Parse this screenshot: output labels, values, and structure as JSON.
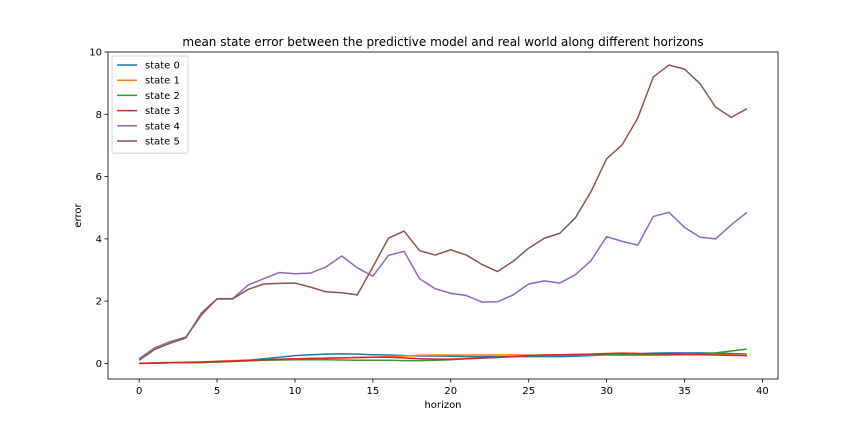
{
  "chart_data": {
    "type": "line",
    "title": "mean state error between the predictive model and real world along different horizons",
    "xlabel": "horizon",
    "ylabel": "error",
    "xlim": [
      -2,
      41
    ],
    "ylim": [
      -0.5,
      10
    ],
    "xticks": [
      0,
      5,
      10,
      15,
      20,
      25,
      30,
      35,
      40
    ],
    "yticks": [
      0,
      2,
      4,
      6,
      8,
      10
    ],
    "grid": false,
    "legend_position": "top-left",
    "x": [
      0,
      1,
      2,
      3,
      4,
      5,
      6,
      7,
      8,
      9,
      10,
      11,
      12,
      13,
      14,
      15,
      16,
      17,
      18,
      19,
      20,
      21,
      22,
      23,
      24,
      25,
      26,
      27,
      28,
      29,
      30,
      31,
      32,
      33,
      34,
      35,
      36,
      37,
      38,
      39
    ],
    "series": [
      {
        "name": "state 0",
        "color": "#1f77b4",
        "values": [
          0.0,
          0.01,
          0.02,
          0.02,
          0.03,
          0.05,
          0.07,
          0.1,
          0.15,
          0.2,
          0.25,
          0.28,
          0.3,
          0.31,
          0.3,
          0.28,
          0.27,
          0.25,
          0.24,
          0.24,
          0.23,
          0.22,
          0.22,
          0.22,
          0.22,
          0.22,
          0.22,
          0.22,
          0.23,
          0.25,
          0.28,
          0.3,
          0.31,
          0.33,
          0.34,
          0.34,
          0.34,
          0.33,
          0.32,
          0.3
        ]
      },
      {
        "name": "state 1",
        "color": "#ff7f0e",
        "values": [
          0.0,
          0.02,
          0.03,
          0.04,
          0.05,
          0.07,
          0.09,
          0.1,
          0.12,
          0.14,
          0.15,
          0.16,
          0.17,
          0.18,
          0.19,
          0.2,
          0.22,
          0.24,
          0.26,
          0.27,
          0.27,
          0.27,
          0.27,
          0.27,
          0.27,
          0.27,
          0.27,
          0.27,
          0.27,
          0.27,
          0.27,
          0.27,
          0.27,
          0.27,
          0.28,
          0.28,
          0.28,
          0.28,
          0.28,
          0.27
        ]
      },
      {
        "name": "state 2",
        "color": "#2ca02c",
        "values": [
          0.0,
          0.01,
          0.02,
          0.02,
          0.03,
          0.04,
          0.06,
          0.08,
          0.1,
          0.11,
          0.12,
          0.12,
          0.12,
          0.11,
          0.1,
          0.1,
          0.1,
          0.09,
          0.09,
          0.1,
          0.12,
          0.15,
          0.18,
          0.2,
          0.22,
          0.24,
          0.26,
          0.27,
          0.27,
          0.28,
          0.28,
          0.27,
          0.27,
          0.27,
          0.27,
          0.28,
          0.3,
          0.34,
          0.4,
          0.46
        ]
      },
      {
        "name": "state 3",
        "color": "#d62728",
        "values": [
          0.0,
          0.01,
          0.02,
          0.03,
          0.04,
          0.06,
          0.08,
          0.1,
          0.12,
          0.13,
          0.15,
          0.16,
          0.17,
          0.18,
          0.19,
          0.2,
          0.2,
          0.18,
          0.15,
          0.14,
          0.14,
          0.15,
          0.17,
          0.19,
          0.22,
          0.25,
          0.27,
          0.28,
          0.29,
          0.3,
          0.32,
          0.33,
          0.32,
          0.31,
          0.3,
          0.29,
          0.28,
          0.27,
          0.26,
          0.25
        ]
      },
      {
        "name": "state 4",
        "color": "#9467bd",
        "values": [
          0.15,
          0.5,
          0.7,
          0.85,
          1.55,
          2.08,
          2.08,
          2.52,
          2.72,
          2.92,
          2.88,
          2.9,
          3.1,
          3.45,
          3.07,
          2.8,
          3.47,
          3.6,
          2.72,
          2.4,
          2.25,
          2.18,
          1.97,
          1.98,
          2.2,
          2.55,
          2.65,
          2.58,
          2.85,
          3.3,
          4.07,
          3.92,
          3.8,
          4.72,
          4.85,
          4.37,
          4.05,
          4.0,
          4.45,
          4.85
        ]
      },
      {
        "name": "state 5",
        "color": "#8c564b",
        "values": [
          0.1,
          0.45,
          0.65,
          0.82,
          1.62,
          2.07,
          2.07,
          2.38,
          2.55,
          2.57,
          2.58,
          2.45,
          2.3,
          2.27,
          2.2,
          3.1,
          4.02,
          4.25,
          3.62,
          3.48,
          3.65,
          3.48,
          3.18,
          2.95,
          3.28,
          3.7,
          4.02,
          4.18,
          4.68,
          5.52,
          6.57,
          7.02,
          7.88,
          9.2,
          9.58,
          9.45,
          8.98,
          8.23,
          7.9,
          8.18
        ]
      }
    ]
  }
}
